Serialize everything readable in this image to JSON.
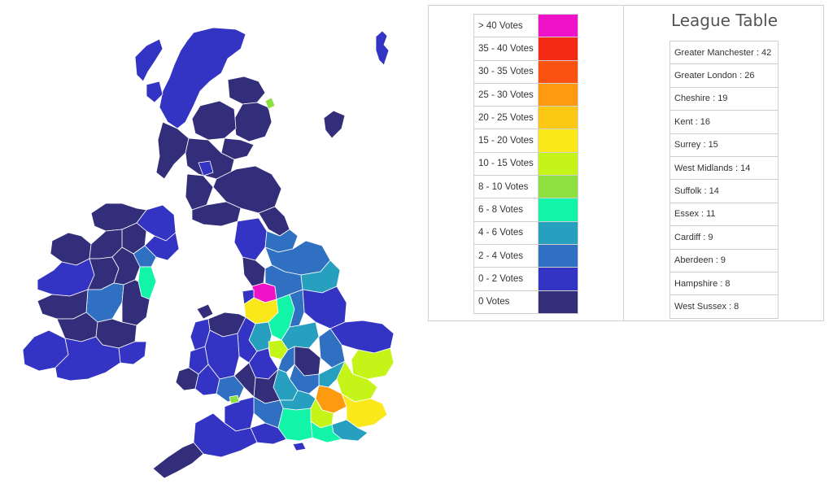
{
  "legend": {
    "items": [
      {
        "label": "> 40 Votes",
        "color": "#f012c8"
      },
      {
        "label": "35 - 40 Votes",
        "color": "#f52a12"
      },
      {
        "label": "30 - 35 Votes",
        "color": "#fa5210"
      },
      {
        "label": "25 - 30 Votes",
        "color": "#fd9a10"
      },
      {
        "label": "20 - 25 Votes",
        "color": "#fdc813"
      },
      {
        "label": "15 - 20 Votes",
        "color": "#fbe81a"
      },
      {
        "label": "10 - 15 Votes",
        "color": "#c5f518"
      },
      {
        "label": "8 - 10 Votes",
        "color": "#8ee03e"
      },
      {
        "label": "6 - 8 Votes",
        "color": "#12f5a8"
      },
      {
        "label": "4 - 6 Votes",
        "color": "#27a0c0"
      },
      {
        "label": "2 - 4 Votes",
        "color": "#3070c2"
      },
      {
        "label": "0 - 2 Votes",
        "color": "#3333c4"
      },
      {
        "label": "0 Votes",
        "color": "#332e7a"
      }
    ]
  },
  "league_table": {
    "title": "League Table",
    "entries": [
      "Greater Manchester : 42",
      "Greater London : 26",
      "Cheshire : 19",
      "Kent : 16",
      "Surrey : 15",
      "West Midlands : 14",
      "Suffolk : 14",
      "Essex : 11",
      "Cardiff : 9",
      "Aberdeen : 9",
      "Hampshire : 8",
      "West Sussex : 8"
    ]
  },
  "map": {
    "colors": {
      "zero": "#332e7a",
      "low": "#3333c4",
      "mid_low": "#3070c2",
      "mid": "#27a0c0",
      "teal": "#12f5a8",
      "lime": "#c5f518",
      "yellow": "#fbe81a",
      "orange": "#fd9a10",
      "magenta": "#f012c8",
      "green": "#8ee03e",
      "border": "#ffffff"
    }
  }
}
